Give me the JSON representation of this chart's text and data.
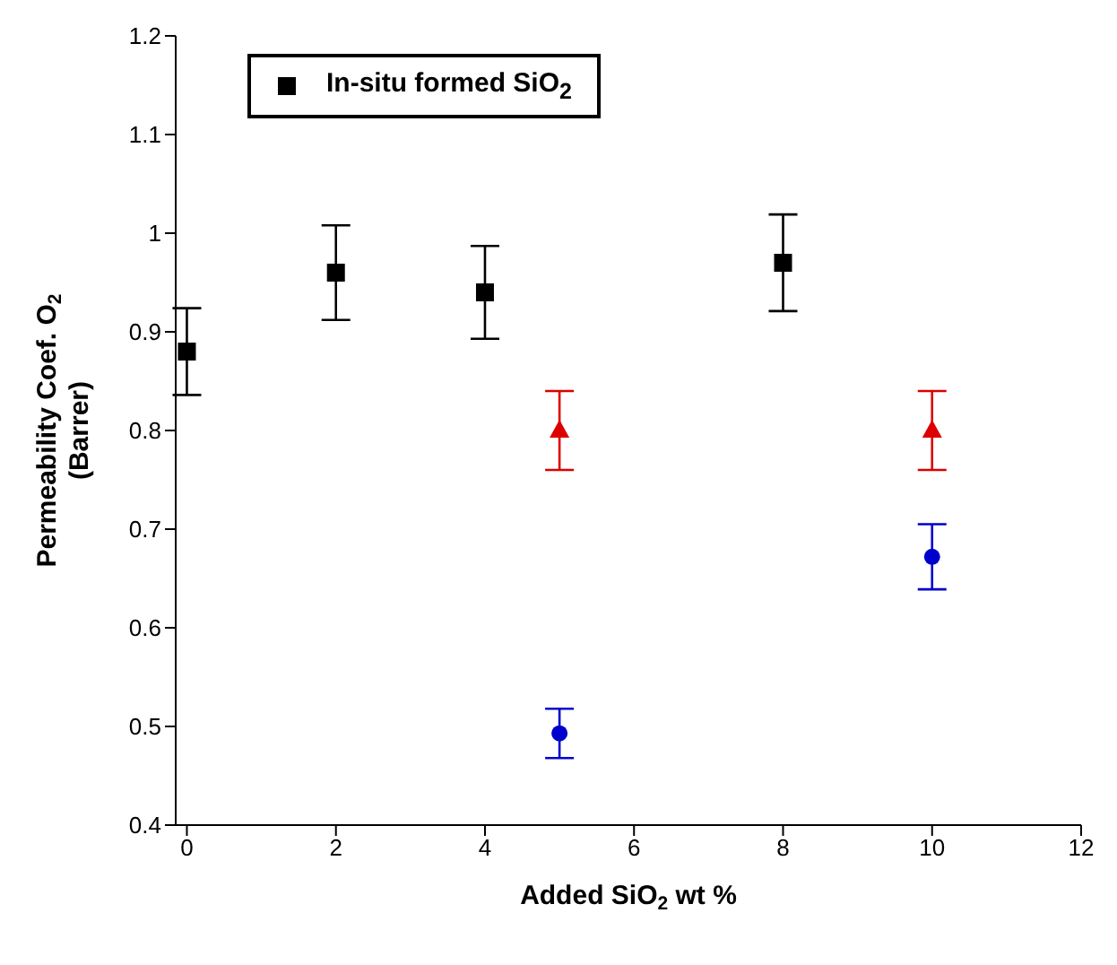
{
  "chart_data": {
    "type": "scatter",
    "xlabel": "Added SiO$_{2}$ wt %",
    "ylabel": "Permeability Coef. O$_{2}$ (Barrer)",
    "xlim": [
      -0.15,
      12
    ],
    "xticks": [
      0,
      2,
      4,
      6,
      8,
      10,
      12
    ],
    "ylim": [
      0.4,
      1.2
    ],
    "yticks": [
      0.4,
      0.5,
      0.6,
      0.7,
      0.8,
      0.9,
      1,
      1.1,
      1.2
    ],
    "grid": false,
    "legend": "top left",
    "series": [
      {
        "name": "In-situ formed SiO$_{2}$",
        "color": "#000000",
        "marker": "square",
        "x": [
          0,
          2,
          4,
          8
        ],
        "values": [
          0.88,
          0.96,
          0.94,
          0.97
        ],
        "errors": [
          0.044,
          0.048,
          0.047,
          0.049
        ]
      },
      {
        "color": "#0000cc",
        "marker": "circle",
        "x": [
          5,
          10
        ],
        "values": [
          0.493,
          0.672
        ],
        "errors": [
          0.025,
          0.033
        ]
      },
      {
        "color": "#dd0000",
        "marker": "triangle",
        "x": [
          5,
          10
        ],
        "values": [
          0.8,
          0.8
        ],
        "errors": [
          0.04,
          0.04
        ]
      }
    ]
  }
}
